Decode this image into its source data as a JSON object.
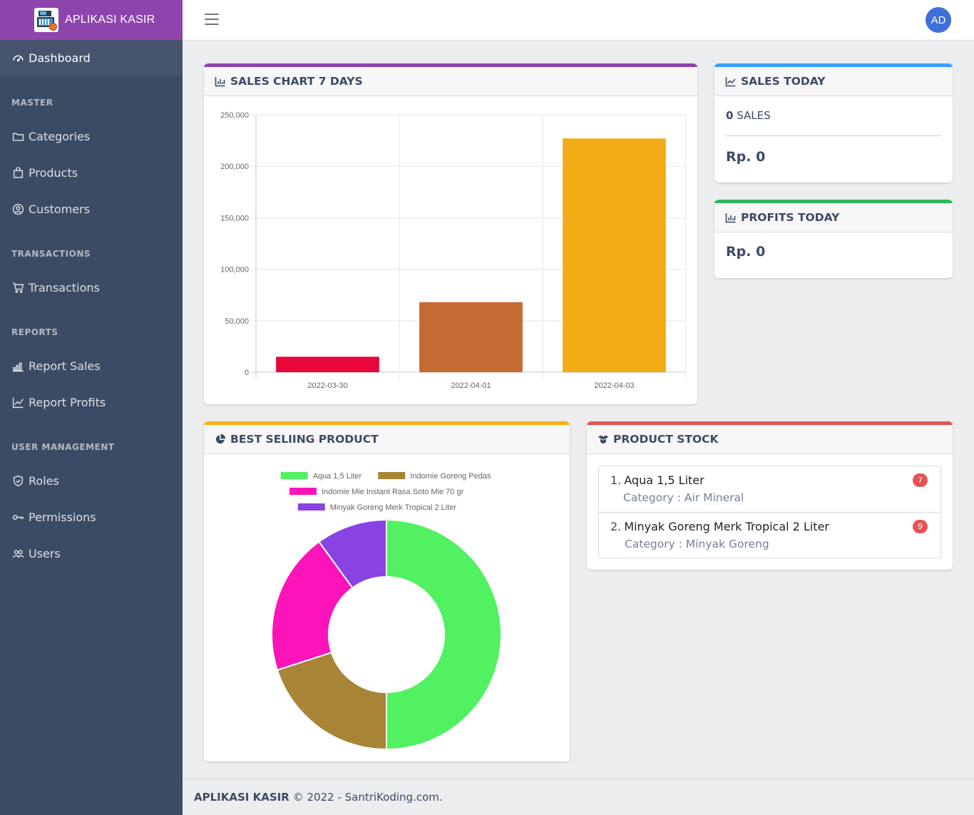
{
  "app": {
    "title": "APLIKASI KASIR"
  },
  "header": {
    "avatar_initials": "AD"
  },
  "sidebar": {
    "dashboard": "Dashboard",
    "sections": {
      "master": "MASTER",
      "transactions": "TRANSACTIONS",
      "reports": "REPORTS",
      "user_management": "USER MANAGEMENT"
    },
    "items": {
      "categories": "Categories",
      "products": "Products",
      "customers": "Customers",
      "transactions": "Transactions",
      "report_sales": "Report Sales",
      "report_profits": "Report Profits",
      "roles": "Roles",
      "permissions": "Permissions",
      "users": "Users"
    }
  },
  "sales_chart": {
    "header": "SALES CHART 7 DAYS",
    "accent": "#8e44ad"
  },
  "sales_today": {
    "header": "SALES TODAY",
    "count": "0",
    "count_label": "SALES",
    "amount": "Rp. 0",
    "accent": "#39a0ff"
  },
  "profits_today": {
    "header": "PROFITS TODAY",
    "amount": "Rp. 0",
    "accent": "#2eb85c"
  },
  "best_selling": {
    "header": "BEST SELIING PRODUCT",
    "accent": "#f9b115"
  },
  "product_stock": {
    "header": "PRODUCT STOCK",
    "accent": "#e55353",
    "items": [
      {
        "num": "1.",
        "name": "Aqua 1,5 Liter",
        "category": "Category : Air Mineral",
        "stock": "7"
      },
      {
        "num": "2.",
        "name": "Minyak Goreng Merk Tropical 2 Liter",
        "category": "Category : Minyak Goreng",
        "stock": "9"
      }
    ]
  },
  "footer": {
    "brand": "APLIKASI KASIR",
    "text": "© 2022 - SantriKoding.com."
  },
  "chart_data": [
    {
      "type": "bar",
      "categories": [
        "2022-03-30",
        "2022-04-01",
        "2022-04-03"
      ],
      "values": [
        15000,
        68000,
        227000
      ],
      "colors": [
        "#e8073b",
        "#c46a33",
        "#f2ac16"
      ],
      "ylim": [
        0,
        250000
      ],
      "yticks": [
        "0",
        "50,000",
        "100,000",
        "150,000",
        "200,000",
        "250,000"
      ],
      "grid": true
    },
    {
      "type": "pie",
      "donut": true,
      "labels": [
        "Aqua 1,5 Liter",
        "Indomie Goreng Pedas",
        "Indomie Mie Instant Rasa Soto Mie 70 gr",
        "Minyak Goreng Merk Tropical 2 Liter"
      ],
      "values": [
        5,
        2,
        2,
        1
      ],
      "colors": [
        "#52f162",
        "#a88536",
        "#fc13b9",
        "#8a43e3"
      ],
      "legend": "top"
    }
  ]
}
